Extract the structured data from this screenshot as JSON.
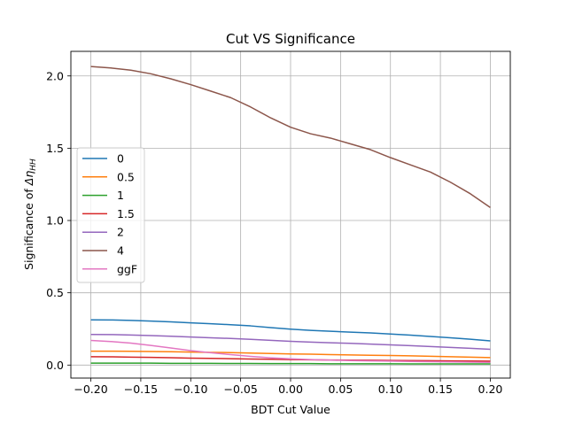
{
  "chart_data": {
    "type": "line",
    "title": "Cut VS Significance",
    "xlabel": "BDT Cut Value",
    "ylabel_prefix": "Significance of ",
    "ylabel_symbol": "Δη",
    "ylabel_subscript": "HH",
    "xlim": [
      -0.22,
      0.22
    ],
    "ylim": [
      -0.09,
      2.17
    ],
    "xticks": [
      -0.2,
      -0.15,
      -0.1,
      -0.05,
      0.0,
      0.05,
      0.1,
      0.15,
      0.2
    ],
    "xtick_labels": [
      "−0.20",
      "−0.15",
      "−0.10",
      "−0.05",
      "0.00",
      "0.05",
      "0.10",
      "0.15",
      "0.20"
    ],
    "yticks": [
      0.0,
      0.5,
      1.0,
      1.5,
      2.0
    ],
    "ytick_labels": [
      "0.0",
      "0.5",
      "1.0",
      "1.5",
      "2.0"
    ],
    "grid": true,
    "legend_position": "center-left",
    "x": [
      -0.2,
      -0.18,
      -0.16,
      -0.14,
      -0.12,
      -0.1,
      -0.08,
      -0.06,
      -0.04,
      -0.02,
      0.0,
      0.02,
      0.04,
      0.06,
      0.08,
      0.1,
      0.12,
      0.14,
      0.16,
      0.18,
      0.2
    ],
    "series": [
      {
        "name": "0",
        "color": "#1f77b4",
        "values": [
          0.313,
          0.312,
          0.309,
          0.304,
          0.299,
          0.292,
          0.286,
          0.279,
          0.271,
          0.259,
          0.248,
          0.24,
          0.234,
          0.228,
          0.222,
          0.215,
          0.207,
          0.198,
          0.189,
          0.179,
          0.167
        ]
      },
      {
        "name": "0.5",
        "color": "#ff7f0e",
        "values": [
          0.096,
          0.096,
          0.095,
          0.094,
          0.092,
          0.09,
          0.088,
          0.086,
          0.083,
          0.08,
          0.077,
          0.075,
          0.072,
          0.07,
          0.068,
          0.066,
          0.064,
          0.061,
          0.058,
          0.055,
          0.052
        ]
      },
      {
        "name": "1",
        "color": "#2ca02c",
        "values": [
          0.013,
          0.013,
          0.013,
          0.013,
          0.012,
          0.012,
          0.012,
          0.011,
          0.011,
          0.01,
          0.01,
          0.01,
          0.009,
          0.009,
          0.009,
          0.009,
          0.008,
          0.008,
          0.008,
          0.008,
          0.008
        ]
      },
      {
        "name": "1.5",
        "color": "#d62728",
        "values": [
          0.058,
          0.057,
          0.055,
          0.053,
          0.051,
          0.048,
          0.046,
          0.044,
          0.042,
          0.04,
          0.038,
          0.036,
          0.035,
          0.034,
          0.033,
          0.032,
          0.031,
          0.03,
          0.029,
          0.028,
          0.027
        ]
      },
      {
        "name": "2",
        "color": "#9467bd",
        "values": [
          0.212,
          0.211,
          0.208,
          0.204,
          0.199,
          0.194,
          0.189,
          0.184,
          0.178,
          0.171,
          0.164,
          0.159,
          0.154,
          0.15,
          0.145,
          0.14,
          0.134,
          0.128,
          0.122,
          0.116,
          0.109
        ]
      },
      {
        "name": "4",
        "color": "#8c564b",
        "values": [
          2.065,
          2.055,
          2.04,
          2.015,
          1.98,
          1.94,
          1.895,
          1.85,
          1.785,
          1.71,
          1.645,
          1.6,
          1.57,
          1.53,
          1.49,
          1.435,
          1.385,
          1.335,
          1.265,
          1.185,
          1.09
        ]
      },
      {
        "name": "ggF",
        "color": "#e377c2",
        "values": [
          0.17,
          0.163,
          0.152,
          0.136,
          0.118,
          0.1,
          0.085,
          0.072,
          0.06,
          0.05,
          0.043,
          0.038,
          0.034,
          0.031,
          0.029,
          0.027,
          0.025,
          0.023,
          0.022,
          0.02,
          0.019
        ]
      }
    ]
  }
}
